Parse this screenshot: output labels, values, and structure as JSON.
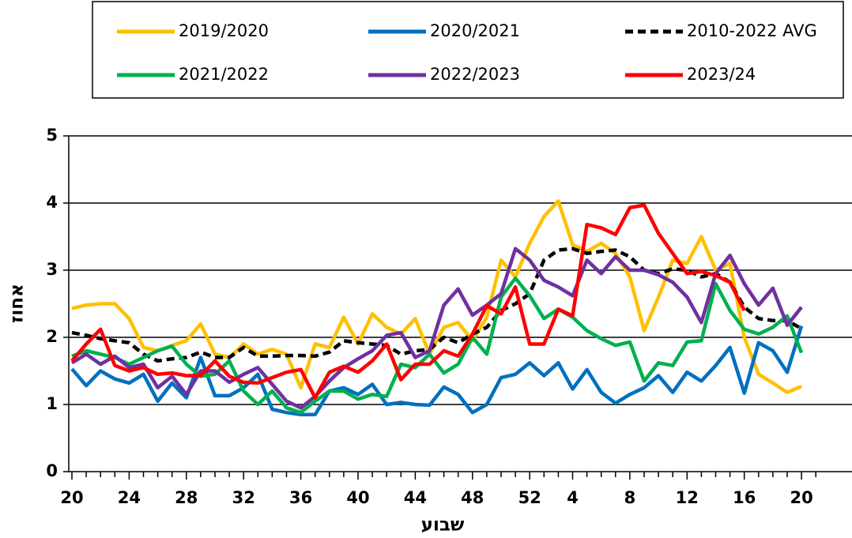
{
  "chart_data": {
    "type": "line",
    "xlabel": "שבוע",
    "ylabel": "אחוז",
    "categories": [
      20,
      null,
      null,
      null,
      24,
      null,
      null,
      null,
      28,
      null,
      null,
      null,
      32,
      null,
      null,
      null,
      36,
      null,
      null,
      null,
      40,
      null,
      null,
      null,
      44,
      null,
      null,
      null,
      48,
      null,
      null,
      null,
      52,
      null,
      null,
      4,
      null,
      null,
      null,
      8,
      null,
      null,
      null,
      12,
      null,
      null,
      null,
      16,
      null,
      null,
      null,
      20,
      null
    ],
    "ylim": [
      0,
      5
    ],
    "yticks": [
      0,
      1,
      2,
      3,
      4,
      5
    ],
    "grid": true,
    "legend": "top",
    "series": [
      {
        "name": "2019/2020",
        "color": "#ffc000",
        "line_style": "solid",
        "values": [
          2.43,
          2.48,
          2.5,
          2.5,
          2.28,
          1.85,
          1.8,
          1.88,
          1.95,
          2.2,
          1.75,
          1.7,
          1.9,
          1.75,
          1.82,
          1.75,
          1.25,
          1.9,
          1.85,
          2.3,
          1.9,
          2.35,
          2.15,
          2.05,
          2.28,
          1.75,
          2.15,
          2.22,
          1.95,
          2.3,
          3.15,
          2.9,
          3.4,
          3.8,
          4.03,
          3.38,
          3.28,
          3.4,
          3.25,
          2.9,
          2.1,
          2.6,
          3.15,
          3.1,
          3.5,
          3.0,
          3.1,
          2.0,
          1.45,
          1.32,
          1.18,
          1.27,
          null
        ]
      },
      {
        "name": "2020/2021",
        "color": "#0070c0",
        "line_style": "solid",
        "values": [
          1.53,
          1.28,
          1.5,
          1.38,
          1.32,
          1.45,
          1.05,
          1.32,
          1.1,
          1.7,
          1.13,
          1.13,
          1.25,
          1.45,
          0.93,
          0.88,
          0.85,
          0.85,
          1.2,
          1.25,
          1.15,
          1.3,
          1.0,
          1.03,
          1.0,
          0.99,
          1.26,
          1.15,
          0.88,
          1.0,
          1.4,
          1.45,
          1.62,
          1.43,
          1.62,
          1.23,
          1.52,
          1.18,
          1.02,
          1.15,
          1.25,
          1.43,
          1.18,
          1.48,
          1.35,
          1.58,
          1.85,
          1.17,
          1.92,
          1.8,
          1.48,
          2.17,
          null
        ]
      },
      {
        "name": "2010-2022 AVG",
        "color": "#000000",
        "line_style": "dashed",
        "values": [
          2.07,
          2.03,
          1.98,
          1.95,
          1.92,
          1.75,
          1.65,
          1.68,
          1.7,
          1.78,
          1.7,
          1.7,
          1.85,
          1.72,
          1.72,
          1.73,
          1.73,
          1.72,
          1.78,
          1.95,
          1.92,
          1.9,
          1.88,
          1.75,
          1.8,
          1.82,
          2.0,
          1.92,
          2.05,
          2.15,
          2.4,
          2.5,
          2.65,
          3.15,
          3.3,
          3.32,
          3.25,
          3.28,
          3.3,
          3.2,
          3.0,
          2.95,
          3.02,
          3.0,
          2.9,
          2.95,
          2.82,
          2.45,
          2.28,
          2.25,
          2.25,
          2.13,
          null
        ]
      },
      {
        "name": "2021/2022",
        "color": "#00b050",
        "line_style": "solid",
        "values": [
          1.72,
          1.8,
          1.75,
          1.7,
          1.6,
          1.7,
          1.8,
          1.87,
          1.6,
          1.42,
          1.45,
          1.65,
          1.2,
          1.0,
          1.2,
          0.95,
          0.88,
          1.05,
          1.2,
          1.2,
          1.08,
          1.15,
          1.12,
          1.6,
          1.55,
          1.75,
          1.47,
          1.6,
          2.0,
          1.75,
          2.6,
          2.88,
          2.62,
          2.28,
          2.42,
          2.3,
          2.1,
          1.98,
          1.88,
          1.93,
          1.35,
          1.62,
          1.58,
          1.93,
          1.95,
          2.8,
          2.4,
          2.12,
          2.05,
          2.15,
          2.32,
          1.77,
          null
        ]
      },
      {
        "name": "2022/2023",
        "color": "#7030a0",
        "line_style": "solid",
        "values": [
          1.62,
          1.75,
          1.6,
          1.72,
          1.55,
          1.6,
          1.25,
          1.42,
          1.15,
          1.5,
          1.5,
          1.33,
          1.45,
          1.55,
          1.3,
          1.05,
          0.95,
          1.12,
          1.35,
          1.55,
          1.68,
          1.8,
          2.03,
          2.07,
          1.7,
          1.8,
          2.48,
          2.72,
          2.33,
          2.48,
          2.65,
          3.32,
          3.15,
          2.85,
          2.75,
          2.62,
          3.15,
          2.95,
          3.2,
          3.0,
          3.0,
          2.93,
          2.82,
          2.6,
          2.22,
          2.95,
          3.22,
          2.8,
          2.48,
          2.73,
          2.18,
          2.45,
          null
        ]
      },
      {
        "name": "2023/24",
        "color": "#ff0000",
        "line_style": "solid",
        "values": [
          1.65,
          1.9,
          2.12,
          1.58,
          1.5,
          1.55,
          1.45,
          1.47,
          1.43,
          1.43,
          1.65,
          1.42,
          1.33,
          1.32,
          1.4,
          1.48,
          1.52,
          1.1,
          1.48,
          1.57,
          1.48,
          1.65,
          1.9,
          1.37,
          1.6,
          1.6,
          1.8,
          1.72,
          2.05,
          2.47,
          2.35,
          2.75,
          1.9,
          1.9,
          2.42,
          2.32,
          3.68,
          3.63,
          3.53,
          3.93,
          3.97,
          3.55,
          3.25,
          2.95,
          2.98,
          2.92,
          2.82,
          2.4,
          null,
          null,
          null,
          null,
          null
        ]
      }
    ]
  }
}
